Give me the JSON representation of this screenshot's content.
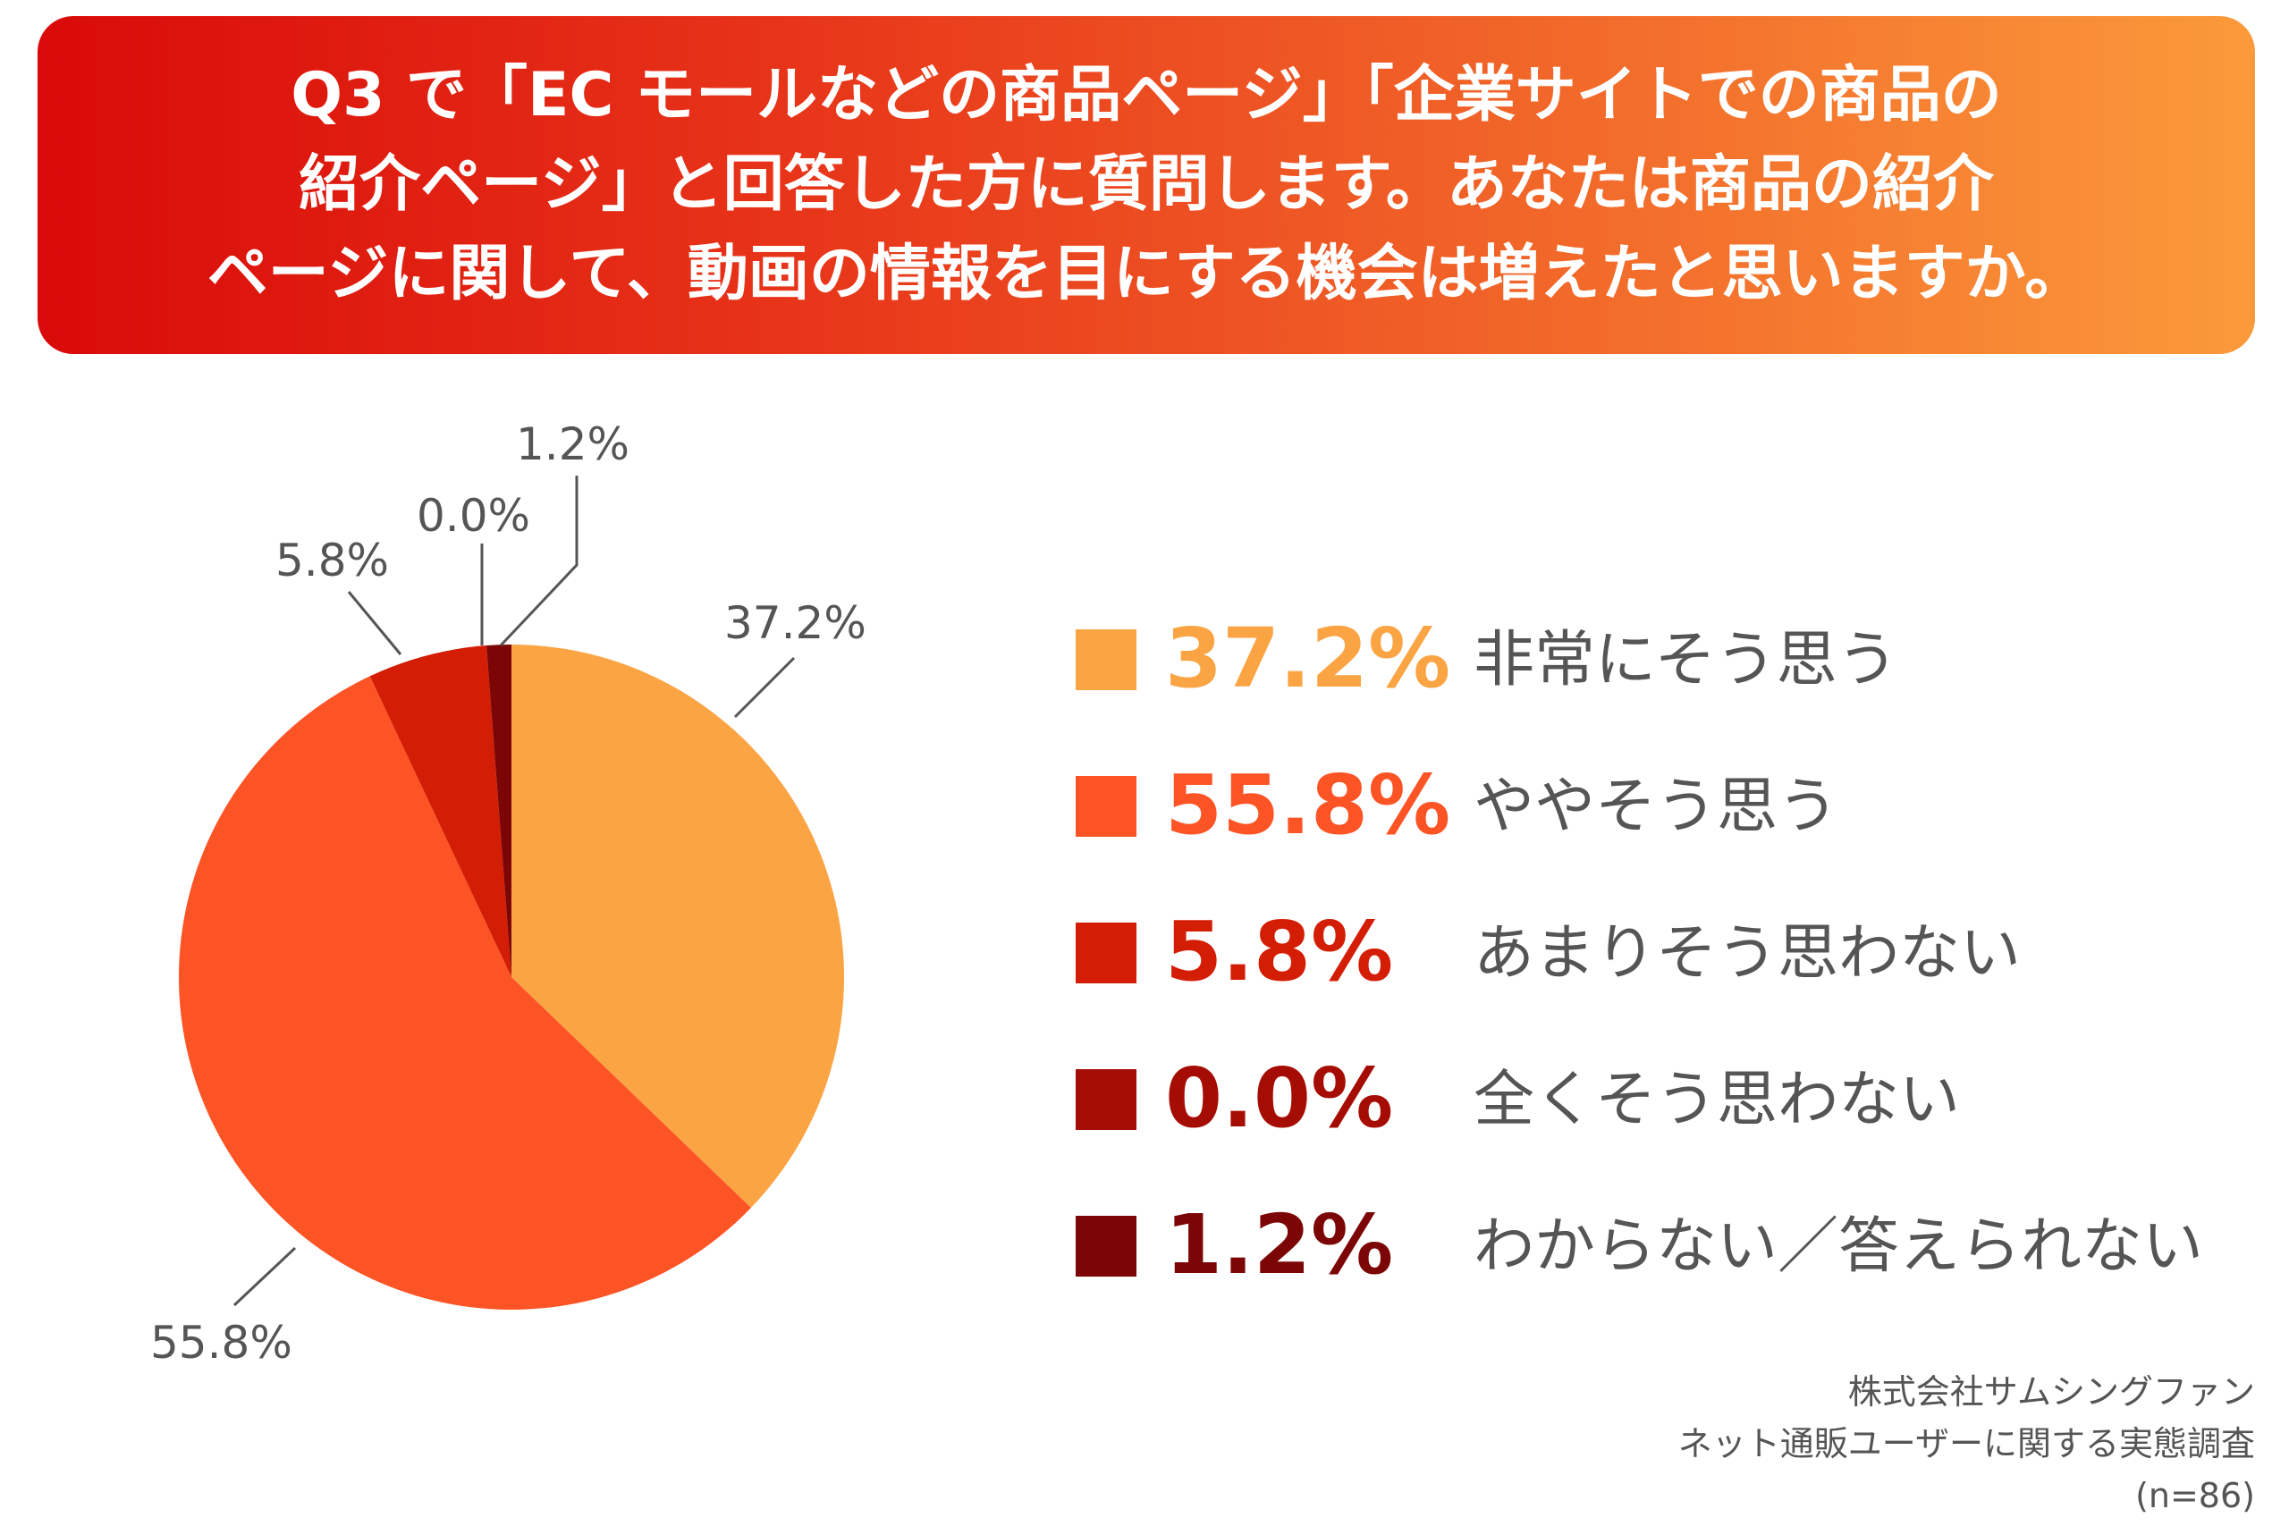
{
  "title": {
    "lines": [
      "Q3 で「EC モールなどの商品ページ」「企業サイトでの商品の",
      "紹介ページ」と回答した方に質問します。あなたは商品の紹介",
      "ページに関して、動画の情報を目にする機会は増えたと思いますか。"
    ]
  },
  "chart_data": {
    "type": "pie",
    "slices": [
      {
        "label": "非常にそう思う",
        "value": 37.2,
        "display": "37.2%",
        "color": "#fba444"
      },
      {
        "label": "ややそう思う",
        "value": 55.8,
        "display": "55.8%",
        "color": "#fd5426"
      },
      {
        "label": "あまりそう思わない",
        "value": 5.8,
        "display": "5.8%",
        "color": "#d41d05"
      },
      {
        "label": "全くそう思わない",
        "value": 0.0,
        "display": "0.0%",
        "color": "#a50d04"
      },
      {
        "label": "わからない／答えられない",
        "value": 1.2,
        "display": "1.2%",
        "color": "#7c0605"
      }
    ],
    "legend_position": "right"
  },
  "source": {
    "lines": [
      "株式会社サムシングファン",
      "ネット通販ユーザーに関する実態調査",
      "(n=86)"
    ]
  }
}
